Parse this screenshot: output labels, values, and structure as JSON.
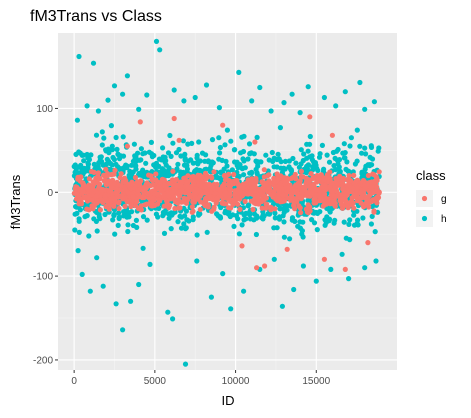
{
  "chart_data": {
    "type": "scatter",
    "title": "fM3Trans vs Class",
    "xlabel": "ID",
    "ylabel": "fM3Trans",
    "xlim": [
      -1000,
      20000
    ],
    "ylim": [
      -212,
      190
    ],
    "x_ticks": [
      0,
      5000,
      10000,
      15000
    ],
    "x_tick_labels": [
      "0",
      "5000",
      "10000",
      "15000"
    ],
    "y_ticks": [
      -200,
      -100,
      0,
      100
    ],
    "y_tick_labels": [
      "-200",
      "-100",
      "0",
      "100"
    ],
    "grid": true,
    "background": "#ebebeb",
    "legend": {
      "title": "class",
      "position": "right",
      "entries": [
        {
          "label": "g",
          "color": "#F8766D"
        },
        {
          "label": "h",
          "color": "#00BFC4"
        }
      ]
    },
    "series": [
      {
        "name": "h",
        "color": "#00BFC4",
        "points": [
          [
            300,
            162
          ],
          [
            1200,
            154
          ],
          [
            2500,
            127
          ],
          [
            3000,
            117
          ],
          [
            3300,
            139
          ],
          [
            5100,
            180
          ],
          [
            5300,
            170
          ],
          [
            6200,
            122
          ],
          [
            8200,
            128
          ],
          [
            10200,
            143
          ],
          [
            11500,
            125
          ],
          [
            13500,
            117
          ],
          [
            14500,
            126
          ],
          [
            16800,
            120
          ],
          [
            17700,
            131
          ],
          [
            200,
            86
          ],
          [
            800,
            103
          ],
          [
            1500,
            97
          ],
          [
            2100,
            110
          ],
          [
            4000,
            99
          ],
          [
            4500,
            116
          ],
          [
            6800,
            109
          ],
          [
            7500,
            113
          ],
          [
            9000,
            101
          ],
          [
            11000,
            109
          ],
          [
            12200,
            97
          ],
          [
            13000,
            107
          ],
          [
            14000,
            95
          ],
          [
            15500,
            113
          ],
          [
            16200,
            103
          ],
          [
            18000,
            99
          ],
          [
            18600,
            108
          ],
          [
            500,
            -98
          ],
          [
            1000,
            -118
          ],
          [
            1800,
            -112
          ],
          [
            2600,
            -133
          ],
          [
            3000,
            -164
          ],
          [
            3500,
            -130
          ],
          [
            4000,
            -110
          ],
          [
            5800,
            -143
          ],
          [
            6100,
            -151
          ],
          [
            6900,
            -205
          ],
          [
            8500,
            -125
          ],
          [
            9700,
            -139
          ],
          [
            10500,
            -118
          ],
          [
            11500,
            -92
          ],
          [
            12900,
            -136
          ],
          [
            13600,
            -116
          ],
          [
            15000,
            -106
          ],
          [
            15900,
            -92
          ],
          [
            17000,
            -103
          ],
          [
            18000,
            -90
          ],
          [
            18700,
            -82
          ],
          [
            1400,
            -78
          ],
          [
            4700,
            -86
          ],
          [
            7600,
            -82
          ],
          [
            9200,
            -97
          ],
          [
            12400,
            -80
          ],
          [
            14200,
            -88
          ],
          [
            16600,
            -74
          ]
        ]
      },
      {
        "name": "g",
        "color": "#F8766D",
        "points": [
          [
            4100,
            84
          ],
          [
            6200,
            88
          ],
          [
            9200,
            80
          ],
          [
            14600,
            90
          ],
          [
            16000,
            68
          ],
          [
            6500,
            62
          ],
          [
            11200,
            60
          ],
          [
            3300,
            55
          ],
          [
            13200,
            -68
          ],
          [
            10400,
            -64
          ],
          [
            11300,
            -90
          ],
          [
            11800,
            -88
          ],
          [
            15500,
            -80
          ],
          [
            16800,
            -92
          ],
          [
            18200,
            -60
          ]
        ]
      }
    ],
    "dense_band": {
      "description": "dense cloud of points across all IDs",
      "x_range": [
        0,
        18900
      ],
      "g_y_range": [
        -30,
        32
      ],
      "h_y_range": [
        -60,
        72
      ]
    }
  }
}
